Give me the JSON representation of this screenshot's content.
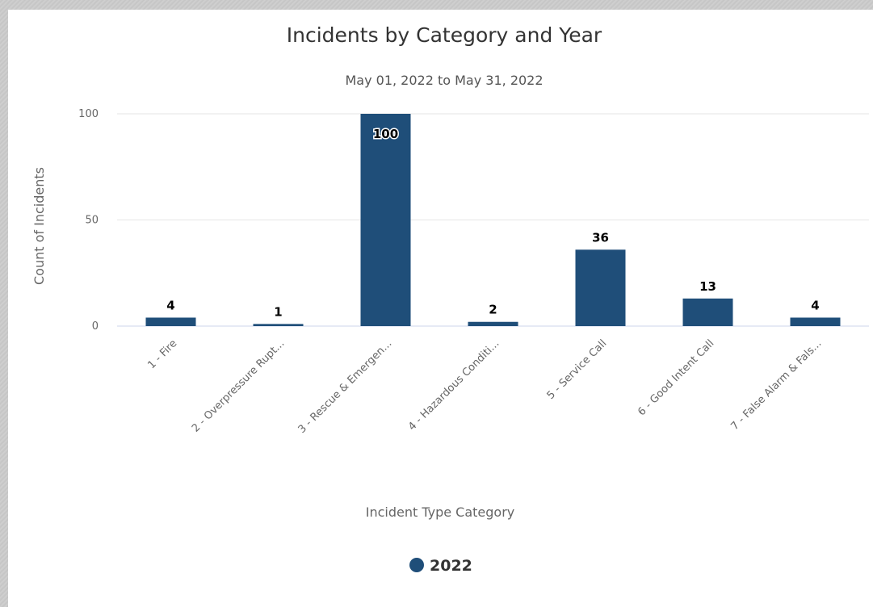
{
  "chart_data": {
    "type": "bar",
    "title": "Incidents by Category and Year",
    "subtitle": "May 01, 2022 to May 31, 2022",
    "xlabel": "Incident Type Category",
    "ylabel": "Count of Incidents",
    "categories": [
      "1 - Fire",
      "2 - Overpressure Rupt...",
      "3 - Rescue & Emergen...",
      "4 - Hazardous Conditi...",
      "5 - Service Call",
      "6 - Good Intent Call",
      "7 - False Alarm & Fals..."
    ],
    "series": [
      {
        "name": "2022",
        "values": [
          4,
          1,
          100,
          2,
          36,
          13,
          4
        ],
        "color": "#1f4e79"
      }
    ],
    "ylim": [
      0,
      100
    ],
    "yticks": [
      0,
      50,
      100
    ],
    "grid": true,
    "legend_position": "bottom-center"
  }
}
